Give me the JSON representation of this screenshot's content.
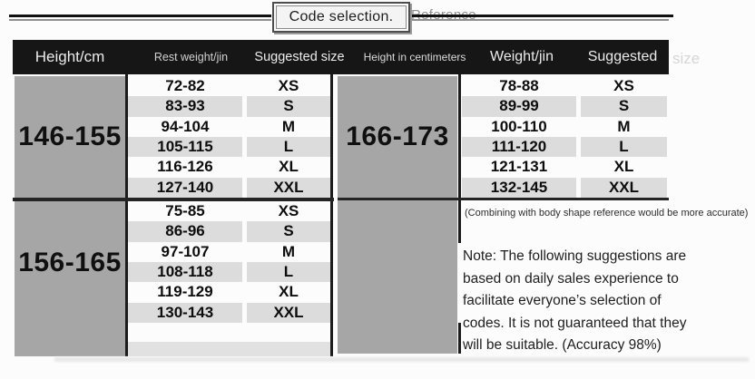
{
  "header": {
    "title": "Code selection.",
    "reference": "Reference"
  },
  "table": {
    "headers": {
      "height": "Height/cm",
      "rest_weight": "Rest weight/jin",
      "suggested_size": "Suggested size",
      "height_in_cm": "Height in centimeters",
      "weight": "Weight/jin",
      "suggested": "Suggested",
      "size_overflow": "size"
    },
    "sections": [
      {
        "height": "146-155",
        "rows": [
          [
            "72-82",
            "XS"
          ],
          [
            "83-93",
            "S"
          ],
          [
            "94-104",
            "M"
          ],
          [
            "105-115",
            "L"
          ],
          [
            "116-126",
            "XL"
          ],
          [
            "127-140",
            "XXL"
          ]
        ]
      },
      {
        "height": "156-165",
        "rows": [
          [
            "75-85",
            "XS"
          ],
          [
            "86-96",
            "S"
          ],
          [
            "97-107",
            "M"
          ],
          [
            "108-118",
            "L"
          ],
          [
            "119-129",
            "XL"
          ],
          [
            "130-143",
            "XXL"
          ]
        ]
      },
      {
        "height": "166-173",
        "rows": [
          [
            "78-88",
            "XS"
          ],
          [
            "89-99",
            "S"
          ],
          [
            "100-110",
            "M"
          ],
          [
            "111-120",
            "L"
          ],
          [
            "121-131",
            "XL"
          ],
          [
            "132-145",
            "XXL"
          ]
        ]
      }
    ]
  },
  "notes": {
    "hint": "(Combining with body shape reference would be more accurate)",
    "note_lines": [
      "Note: The following suggestions are",
      "based on daily sales experience to",
      "facilitate everyone’s selection of",
      "codes. It is not guaranteed that they",
      "will be suitable. (Accuracy 98%)"
    ]
  },
  "colors": {
    "header_band": "#161616",
    "height_block": "#a6a6a6",
    "row_alt": "#dcdcdc",
    "row_white": "#fcfcfc",
    "border_dark": "#1c1c1c"
  }
}
